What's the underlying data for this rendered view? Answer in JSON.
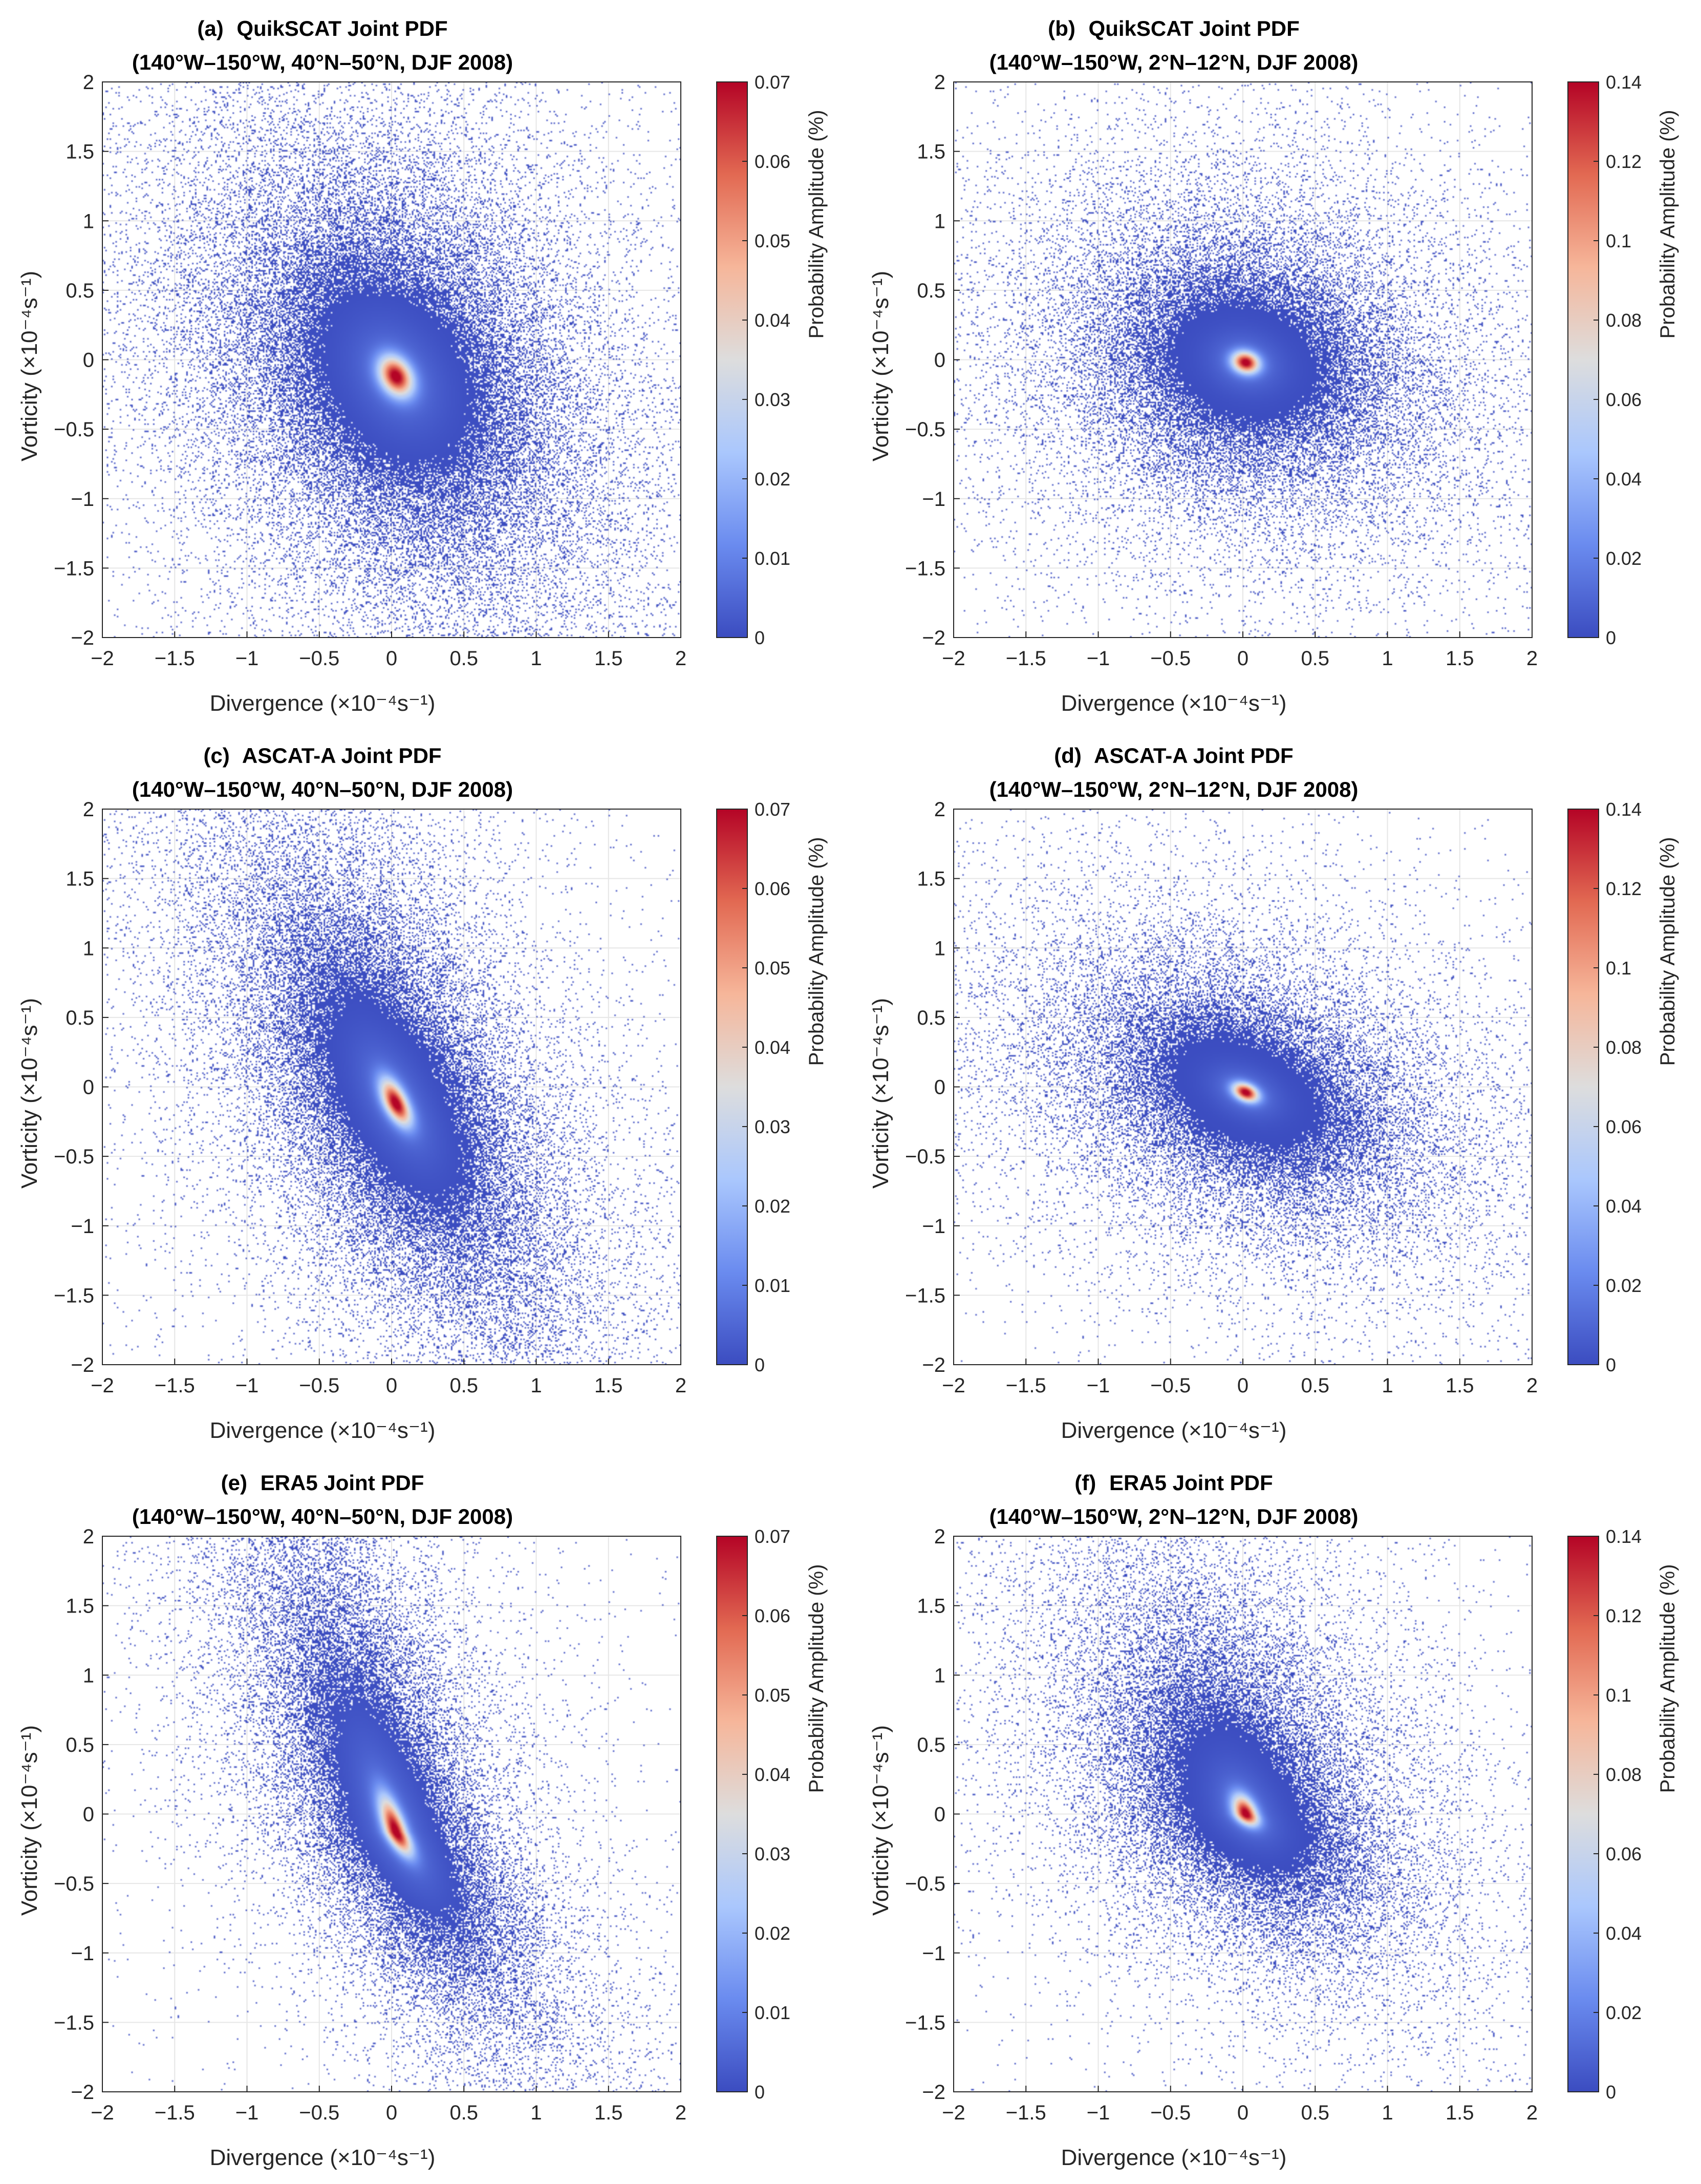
{
  "figure": {
    "colorbar_label": "Probability Amplitude (%)",
    "xlabel": "Divergence (×10⁻⁴s⁻¹)",
    "ylabel": "Vorticity (×10⁻⁴s⁻¹)",
    "colormap": [
      "#3b4cc0",
      "#6a8bef",
      "#aac7fd",
      "#dddddd",
      "#f6b69a",
      "#e26952",
      "#b40426"
    ]
  },
  "chart_data": [
    {
      "id": "a",
      "type": "heatmap",
      "label": "(a)",
      "title": "QuikSCAT Joint PDF",
      "subtitle": "(140°W–150°W, 40°N–50°N, DJF 2008)",
      "xlabel": "Divergence (×10⁻⁴s⁻¹)",
      "ylabel": "Vorticity (×10⁻⁴s⁻¹)",
      "xlim": [
        -2,
        2
      ],
      "ylim": [
        -2,
        2
      ],
      "xticks": [
        -2,
        -1.5,
        -1,
        -0.5,
        0,
        0.5,
        1,
        1.5,
        2
      ],
      "yticks": [
        -2,
        -1.5,
        -1,
        -0.5,
        0,
        0.5,
        1,
        1.5,
        2
      ],
      "colorbar": {
        "min": 0,
        "max": 0.07,
        "ticks": [
          0,
          0.01,
          0.02,
          0.03,
          0.04,
          0.05,
          0.06,
          0.07
        ],
        "label": "Probability Amplitude (%)"
      },
      "peak": {
        "x": 0.03,
        "y": -0.12,
        "value": 0.07
      },
      "distribution": {
        "sx": 0.45,
        "sy": 0.55,
        "rho": -0.3,
        "tail_scale": 2.0,
        "skew_y": 0.0
      }
    },
    {
      "id": "b",
      "type": "heatmap",
      "label": "(b)",
      "title": "QuikSCAT Joint PDF",
      "subtitle": "(140°W–150°W, 2°N–12°N, DJF 2008)",
      "xlabel": "Divergence (×10⁻⁴s⁻¹)",
      "ylabel": "Vorticity (×10⁻⁴s⁻¹)",
      "xlim": [
        -2,
        2
      ],
      "ylim": [
        -2,
        2
      ],
      "xticks": [
        -2,
        -1.5,
        -1,
        -0.5,
        0,
        0.5,
        1,
        1.5,
        2
      ],
      "yticks": [
        -2,
        -1.5,
        -1,
        -0.5,
        0,
        0.5,
        1,
        1.5,
        2
      ],
      "colorbar": {
        "min": 0,
        "max": 0.14,
        "ticks": [
          0,
          0.02,
          0.04,
          0.06,
          0.08,
          0.1,
          0.12,
          0.14
        ],
        "label": "Probability Amplitude (%)"
      },
      "peak": {
        "x": 0.02,
        "y": -0.02,
        "value": 0.14
      },
      "distribution": {
        "sx": 0.36,
        "sy": 0.3,
        "rho": -0.15,
        "tail_scale": 2.4,
        "skew_y": 0.0
      }
    },
    {
      "id": "c",
      "type": "heatmap",
      "label": "(c)",
      "title": "ASCAT-A Joint PDF",
      "subtitle": "(140°W–150°W, 40°N–50°N, DJF 2008)",
      "xlabel": "Divergence (×10⁻⁴s⁻¹)",
      "ylabel": "Vorticity (×10⁻⁴s⁻¹)",
      "xlim": [
        -2,
        2
      ],
      "ylim": [
        -2,
        2
      ],
      "xticks": [
        -2,
        -1.5,
        -1,
        -0.5,
        0,
        0.5,
        1,
        1.5,
        2
      ],
      "yticks": [
        -2,
        -1.5,
        -1,
        -0.5,
        0,
        0.5,
        1,
        1.5,
        2
      ],
      "colorbar": {
        "min": 0,
        "max": 0.07,
        "ticks": [
          0,
          0.01,
          0.02,
          0.03,
          0.04,
          0.05,
          0.06,
          0.07
        ],
        "label": "Probability Amplitude (%)"
      },
      "peak": {
        "x": 0.03,
        "y": -0.12,
        "value": 0.07
      },
      "distribution": {
        "sx": 0.4,
        "sy": 0.6,
        "rho": -0.6,
        "tail_scale": 2.0,
        "skew_y": 0.1
      }
    },
    {
      "id": "d",
      "type": "heatmap",
      "label": "(d)",
      "title": "ASCAT-A Joint PDF",
      "subtitle": "(140°W–150°W, 2°N–12°N, DJF 2008)",
      "xlabel": "Divergence (×10⁻⁴s⁻¹)",
      "ylabel": "Vorticity (×10⁻⁴s⁻¹)",
      "xlim": [
        -2,
        2
      ],
      "ylim": [
        -2,
        2
      ],
      "xticks": [
        -2,
        -1.5,
        -1,
        -0.5,
        0,
        0.5,
        1,
        1.5,
        2
      ],
      "yticks": [
        -2,
        -1.5,
        -1,
        -0.5,
        0,
        0.5,
        1,
        1.5,
        2
      ],
      "colorbar": {
        "min": 0,
        "max": 0.14,
        "ticks": [
          0,
          0.02,
          0.04,
          0.06,
          0.08,
          0.1,
          0.12,
          0.14
        ],
        "label": "Probability Amplitude (%)"
      },
      "peak": {
        "x": 0.02,
        "y": -0.04,
        "value": 0.11
      },
      "distribution": {
        "sx": 0.34,
        "sy": 0.26,
        "rho": -0.35,
        "tail_scale": 2.6,
        "skew_y": 0.0
      }
    },
    {
      "id": "e",
      "type": "heatmap",
      "label": "(e)",
      "title": "ERA5 Joint PDF",
      "subtitle": "(140°W–150°W, 40°N–50°N, DJF 2008)",
      "xlabel": "Divergence (×10⁻⁴s⁻¹)",
      "ylabel": "Vorticity (×10⁻⁴s⁻¹)",
      "xlim": [
        -2,
        2
      ],
      "ylim": [
        -2,
        2
      ],
      "xticks": [
        -2,
        -1.5,
        -1,
        -0.5,
        0,
        0.5,
        1,
        1.5,
        2
      ],
      "yticks": [
        -2,
        -1.5,
        -1,
        -0.5,
        0,
        0.5,
        1,
        1.5,
        2
      ],
      "colorbar": {
        "min": 0,
        "max": 0.07,
        "ticks": [
          0,
          0.01,
          0.02,
          0.03,
          0.04,
          0.05,
          0.06,
          0.07
        ],
        "label": "Probability Amplitude (%)"
      },
      "peak": {
        "x": 0.03,
        "y": -0.13,
        "value": 0.07
      },
      "distribution": {
        "sx": 0.42,
        "sy": 0.62,
        "rho": -0.72,
        "tail_scale": 1.7,
        "skew_y": 0.55
      }
    },
    {
      "id": "f",
      "type": "heatmap",
      "label": "(f)",
      "title": "ERA5 Joint PDF",
      "subtitle": "(140°W–150°W, 2°N–12°N, DJF 2008)",
      "xlabel": "Divergence (×10⁻⁴s⁻¹)",
      "ylabel": "Vorticity (×10⁻⁴s⁻¹)",
      "xlim": [
        -2,
        2
      ],
      "ylim": [
        -2,
        2
      ],
      "xticks": [
        -2,
        -1.5,
        -1,
        -0.5,
        0,
        0.5,
        1,
        1.5,
        2
      ],
      "yticks": [
        -2,
        -1.5,
        -1,
        -0.5,
        0,
        0.5,
        1,
        1.5,
        2
      ],
      "colorbar": {
        "min": 0,
        "max": 0.14,
        "ticks": [
          0,
          0.02,
          0.04,
          0.06,
          0.08,
          0.1,
          0.12,
          0.14
        ],
        "label": "Probability Amplitude (%)"
      },
      "peak": {
        "x": 0.02,
        "y": 0.0,
        "value": 0.14
      },
      "distribution": {
        "sx": 0.34,
        "sy": 0.32,
        "rho": -0.45,
        "tail_scale": 2.2,
        "skew_y": 0.6
      }
    }
  ]
}
